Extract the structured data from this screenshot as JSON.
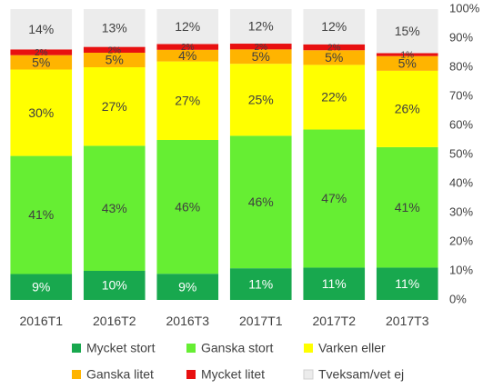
{
  "chart_data": {
    "type": "bar",
    "stacked": true,
    "title": "",
    "xlabel": "",
    "ylabel": "",
    "ylim": [
      0,
      100
    ],
    "y_ticks": [
      "0%",
      "10%",
      "20%",
      "30%",
      "40%",
      "50%",
      "60%",
      "70%",
      "80%",
      "90%",
      "100%"
    ],
    "y_axis_side": "right",
    "grid": false,
    "legend_position": "bottom",
    "categories": [
      "2016T1",
      "2016T2",
      "2016T3",
      "2017T1",
      "2017T2",
      "2017T3"
    ],
    "series": [
      {
        "name": "Mycket stort",
        "color": "#18a84e",
        "values": [
          9,
          10,
          9,
          11,
          11,
          11
        ],
        "labels": [
          "9%",
          "10%",
          "9%",
          "11%",
          "11%",
          "11%"
        ]
      },
      {
        "name": "Ganska stort",
        "color": "#66ee33",
        "values": [
          41,
          43,
          46,
          46,
          47,
          41
        ],
        "labels": [
          "41%",
          "43%",
          "46%",
          "46%",
          "47%",
          "41%"
        ]
      },
      {
        "name": "Varken eller",
        "color": "#ffff00",
        "values": [
          30,
          27,
          27,
          25,
          22,
          26
        ],
        "labels": [
          "30%",
          "27%",
          "27%",
          "25%",
          "22%",
          "26%"
        ]
      },
      {
        "name": "Ganska litet",
        "color": "#ffb400",
        "values": [
          5,
          5,
          4,
          5,
          5,
          5
        ],
        "labels": [
          "5%",
          "5%",
          "4%",
          "5%",
          "5%",
          "5%"
        ]
      },
      {
        "name": "Mycket litet",
        "color": "#e81010",
        "values": [
          2,
          2,
          2,
          2,
          2,
          1
        ],
        "labels": [
          "2%",
          "2%",
          "2%",
          "2%",
          "2%",
          "1%"
        ]
      },
      {
        "name": "Tveksam/vet ej",
        "color": "#ececec",
        "values": [
          14,
          13,
          12,
          12,
          12,
          15
        ],
        "labels": [
          "14%",
          "13%",
          "12%",
          "12%",
          "12%",
          "15%"
        ]
      }
    ]
  }
}
